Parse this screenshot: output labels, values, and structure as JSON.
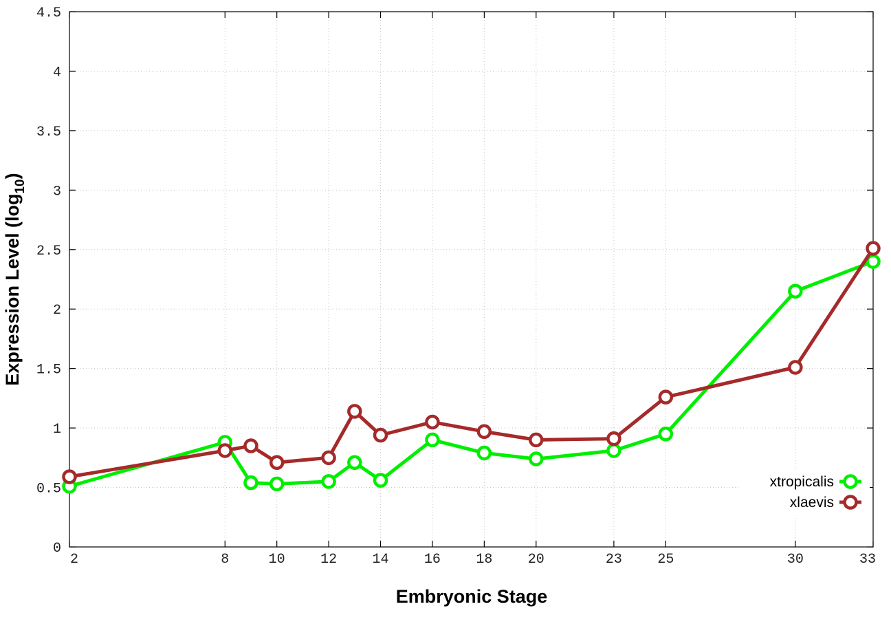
{
  "chart_data": {
    "type": "line",
    "title": "",
    "xlabel": "Embryonic Stage",
    "ylabel": {
      "main": "Expression Level (log",
      "sub": "10",
      "close": ")"
    },
    "x_ticks": [
      "2",
      "8",
      "10",
      "12",
      "14",
      "16",
      "18",
      "20",
      "23",
      "25",
      "30",
      "33"
    ],
    "x": [
      "2",
      "8",
      "9",
      "10",
      "12",
      "13",
      "14",
      "16",
      "18",
      "20",
      "23",
      "25",
      "30",
      "33"
    ],
    "y_ticks": [
      "0",
      "0.5",
      "1",
      "1.5",
      "2",
      "2.5",
      "3",
      "3.5",
      "4",
      "4.5"
    ],
    "ylim": [
      0,
      4.5
    ],
    "grid": true,
    "legend_position": "bottom-right",
    "series": [
      {
        "name": "xtropicalis",
        "color": "#00ee00",
        "values": [
          0.51,
          0.88,
          0.54,
          0.53,
          0.55,
          0.71,
          0.56,
          0.9,
          0.79,
          0.74,
          0.81,
          0.95,
          2.15,
          2.4
        ]
      },
      {
        "name": "xlaevis",
        "color": "#a52a2a",
        "values": [
          0.59,
          0.81,
          0.85,
          0.71,
          0.75,
          1.14,
          0.94,
          1.05,
          0.97,
          0.9,
          0.91,
          1.26,
          1.51,
          2.51
        ]
      }
    ]
  }
}
